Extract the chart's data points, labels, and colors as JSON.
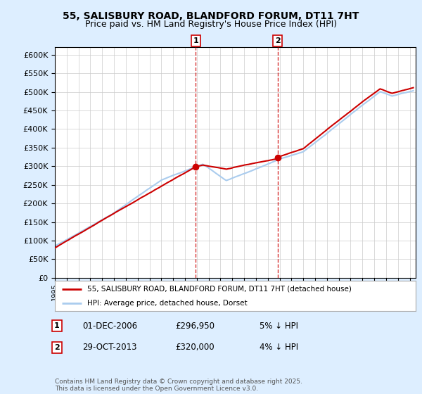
{
  "title_line1": "55, SALISBURY ROAD, BLANDFORD FORUM, DT11 7HT",
  "title_line2": "Price paid vs. HM Land Registry's House Price Index (HPI)",
  "ylim": [
    0,
    620000
  ],
  "yticks": [
    0,
    50000,
    100000,
    150000,
    200000,
    250000,
    300000,
    350000,
    400000,
    450000,
    500000,
    550000,
    600000
  ],
  "legend_label1": "55, SALISBURY ROAD, BLANDFORD FORUM, DT11 7HT (detached house)",
  "legend_label2": "HPI: Average price, detached house, Dorset",
  "marker1_label": "1",
  "marker1_date": "01-DEC-2006",
  "marker1_price": "£296,950",
  "marker1_hpi": "5% ↓ HPI",
  "marker2_label": "2",
  "marker2_date": "29-OCT-2013",
  "marker2_price": "£320,000",
  "marker2_hpi": "4% ↓ HPI",
  "footnote": "Contains HM Land Registry data © Crown copyright and database right 2025.\nThis data is licensed under the Open Government Licence v3.0.",
  "line_color_red": "#cc0000",
  "line_color_blue": "#aaccee",
  "background_color": "#ddeeff",
  "plot_bg_color": "#ffffff",
  "grid_color": "#cccccc",
  "marker1_year": 2006.92,
  "marker2_year": 2013.83
}
